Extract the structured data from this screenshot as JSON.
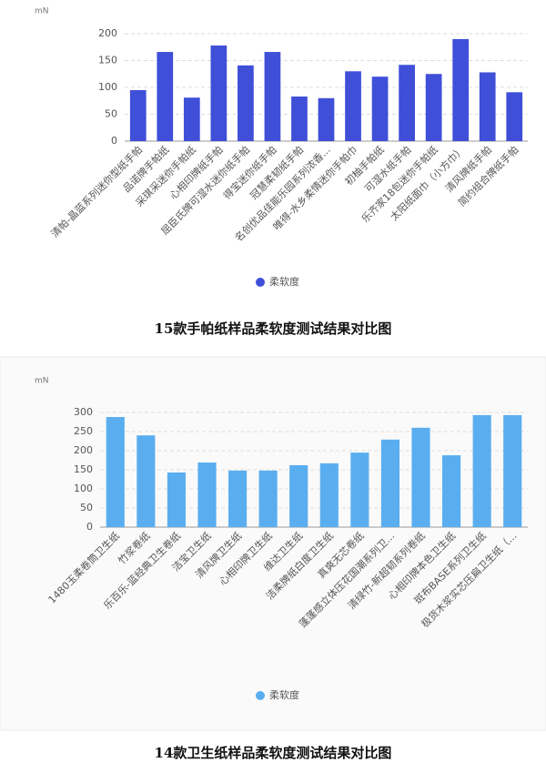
{
  "chart_data": [
    {
      "type": "bar",
      "title": "15款手帕纸样品柔软度测试结果对比图",
      "y_unit": "mN",
      "categories": [
        "清帕-晶蓝系列迷你型纸手帕",
        "品诺牌手帕纸",
        "采琪采迷你手帕纸",
        "心相印牌纸手帕",
        "屈臣氏牌可湿水迷你纸手帕",
        "得宝迷你纸手帕",
        "冠慧柔韧纸手帕",
        "名创优品佳能乐园系列浓香...",
        "唯得-水乡柔情迷你手帕巾",
        "初柚手帕纸",
        "可湿水纸手帕",
        "乐齐家18包迷你手帕纸",
        "太阳纸面巾（小方巾）",
        "清风牌纸手帕",
        "简约组合牌纸手帕"
      ],
      "series": [
        {
          "name": "柔软度",
          "color": "#3f4fd8",
          "values": [
            95,
            166,
            81,
            178,
            141,
            166,
            83,
            80,
            130,
            120,
            142,
            125,
            190,
            128,
            91
          ]
        }
      ],
      "ylim": [
        0,
        200
      ],
      "yticks": [
        0,
        50,
        100,
        150,
        200
      ],
      "grid": true
    },
    {
      "type": "bar",
      "title": "14款卫生纸样品柔软度测试结果对比图",
      "y_unit": "mN",
      "categories": [
        "1480玉柔卷筒卫生纸",
        "竹浆卷纸",
        "乐百乐-蓝经典卫生卷纸",
        "洁宝卫生纸",
        "清风牌卫生纸",
        "心相印牌卫生纸",
        "维达卫生纸",
        "洁柔牌纸白度卫生纸",
        "真爽无芯卷纸",
        "蓬蓬感立体压花国潮系列卫...",
        "清绿竹-新超韧系列卷纸",
        "心相印牌本色卫生纸",
        "斑布BASE系列卫生纸",
        "极货木浆实芯压扁卫生纸（..."
      ],
      "series": [
        {
          "name": "柔软度",
          "color": "#5aaef0",
          "values": [
            288,
            240,
            143,
            169,
            148,
            148,
            162,
            167,
            195,
            229,
            260,
            188,
            293,
            293
          ]
        }
      ],
      "ylim": [
        0,
        300
      ],
      "yticks": [
        0,
        50,
        100,
        150,
        200,
        250,
        300
      ],
      "grid": true
    }
  ]
}
